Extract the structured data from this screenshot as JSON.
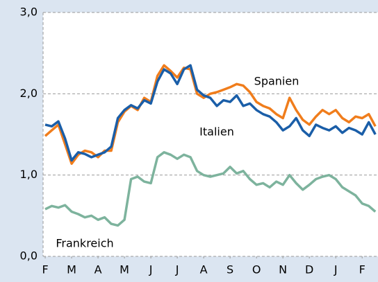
{
  "chart_data": {
    "type": "line",
    "x": [
      0,
      0.25,
      0.5,
      0.75,
      1,
      1.25,
      1.5,
      1.75,
      2,
      2.25,
      2.5,
      2.75,
      3,
      3.25,
      3.5,
      3.75,
      4,
      4.25,
      4.5,
      4.75,
      5,
      5.25,
      5.5,
      5.75,
      6,
      6.25,
      6.5,
      6.75,
      7,
      7.25,
      7.5,
      7.75,
      8,
      8.25,
      8.5,
      8.75,
      9,
      9.25,
      9.5,
      9.75,
      10,
      10.25,
      10.5,
      10.75,
      11,
      11.25,
      11.5,
      11.75,
      12,
      12.25,
      12.5
    ],
    "series": [
      {
        "name": "Spanien",
        "color": "#f07d1c",
        "values": [
          1.48,
          1.55,
          1.62,
          1.38,
          1.14,
          1.25,
          1.3,
          1.28,
          1.22,
          1.3,
          1.3,
          1.65,
          1.78,
          1.85,
          1.8,
          1.95,
          1.9,
          2.22,
          2.35,
          2.28,
          2.2,
          2.32,
          2.3,
          2.0,
          1.95,
          2.0,
          2.02,
          2.05,
          2.08,
          2.12,
          2.1,
          2.02,
          1.9,
          1.85,
          1.82,
          1.75,
          1.7,
          1.95,
          1.8,
          1.68,
          1.62,
          1.72,
          1.8,
          1.75,
          1.8,
          1.7,
          1.65,
          1.72,
          1.7,
          1.75,
          1.6
        ]
      },
      {
        "name": "Italien",
        "color": "#1a5ea8",
        "values": [
          1.62,
          1.6,
          1.66,
          1.45,
          1.18,
          1.28,
          1.26,
          1.22,
          1.25,
          1.28,
          1.35,
          1.7,
          1.8,
          1.86,
          1.82,
          1.92,
          1.88,
          2.15,
          2.3,
          2.25,
          2.12,
          2.3,
          2.35,
          2.05,
          1.98,
          1.95,
          1.85,
          1.92,
          1.9,
          1.98,
          1.85,
          1.88,
          1.8,
          1.75,
          1.72,
          1.65,
          1.55,
          1.6,
          1.7,
          1.55,
          1.48,
          1.62,
          1.58,
          1.55,
          1.6,
          1.52,
          1.58,
          1.55,
          1.5,
          1.65,
          1.5
        ]
      },
      {
        "name": "Frankreich",
        "color": "#7db39d",
        "values": [
          0.58,
          0.62,
          0.6,
          0.63,
          0.55,
          0.52,
          0.48,
          0.5,
          0.45,
          0.48,
          0.4,
          0.38,
          0.45,
          0.95,
          0.98,
          0.92,
          0.9,
          1.22,
          1.28,
          1.25,
          1.2,
          1.25,
          1.22,
          1.05,
          1.0,
          0.98,
          1.0,
          1.02,
          1.1,
          1.02,
          1.05,
          0.95,
          0.88,
          0.9,
          0.85,
          0.92,
          0.88,
          1.0,
          0.9,
          0.82,
          0.88,
          0.95,
          0.98,
          1.0,
          0.95,
          0.85,
          0.8,
          0.75,
          0.65,
          0.62,
          0.55
        ]
      }
    ],
    "xlim": [
      -0.08,
      12.6
    ],
    "xticks": [
      {
        "value": 0,
        "label": "F"
      },
      {
        "value": 1,
        "label": "M"
      },
      {
        "value": 2,
        "label": "A"
      },
      {
        "value": 3,
        "label": "M"
      },
      {
        "value": 4,
        "label": "J"
      },
      {
        "value": 5,
        "label": "J"
      },
      {
        "value": 6,
        "label": "A"
      },
      {
        "value": 7,
        "label": "S"
      },
      {
        "value": 8,
        "label": "O"
      },
      {
        "value": 9,
        "label": "N"
      },
      {
        "value": 10,
        "label": "D"
      },
      {
        "value": 11,
        "label": "J"
      },
      {
        "value": 12,
        "label": "F"
      }
    ],
    "ylim": [
      0,
      3
    ],
    "yticks": [
      {
        "value": 0,
        "label": "0,0"
      },
      {
        "value": 1,
        "label": "1,0"
      },
      {
        "value": 2,
        "label": "2,0"
      },
      {
        "value": 3,
        "label": "3,0"
      }
    ],
    "grid": true
  }
}
